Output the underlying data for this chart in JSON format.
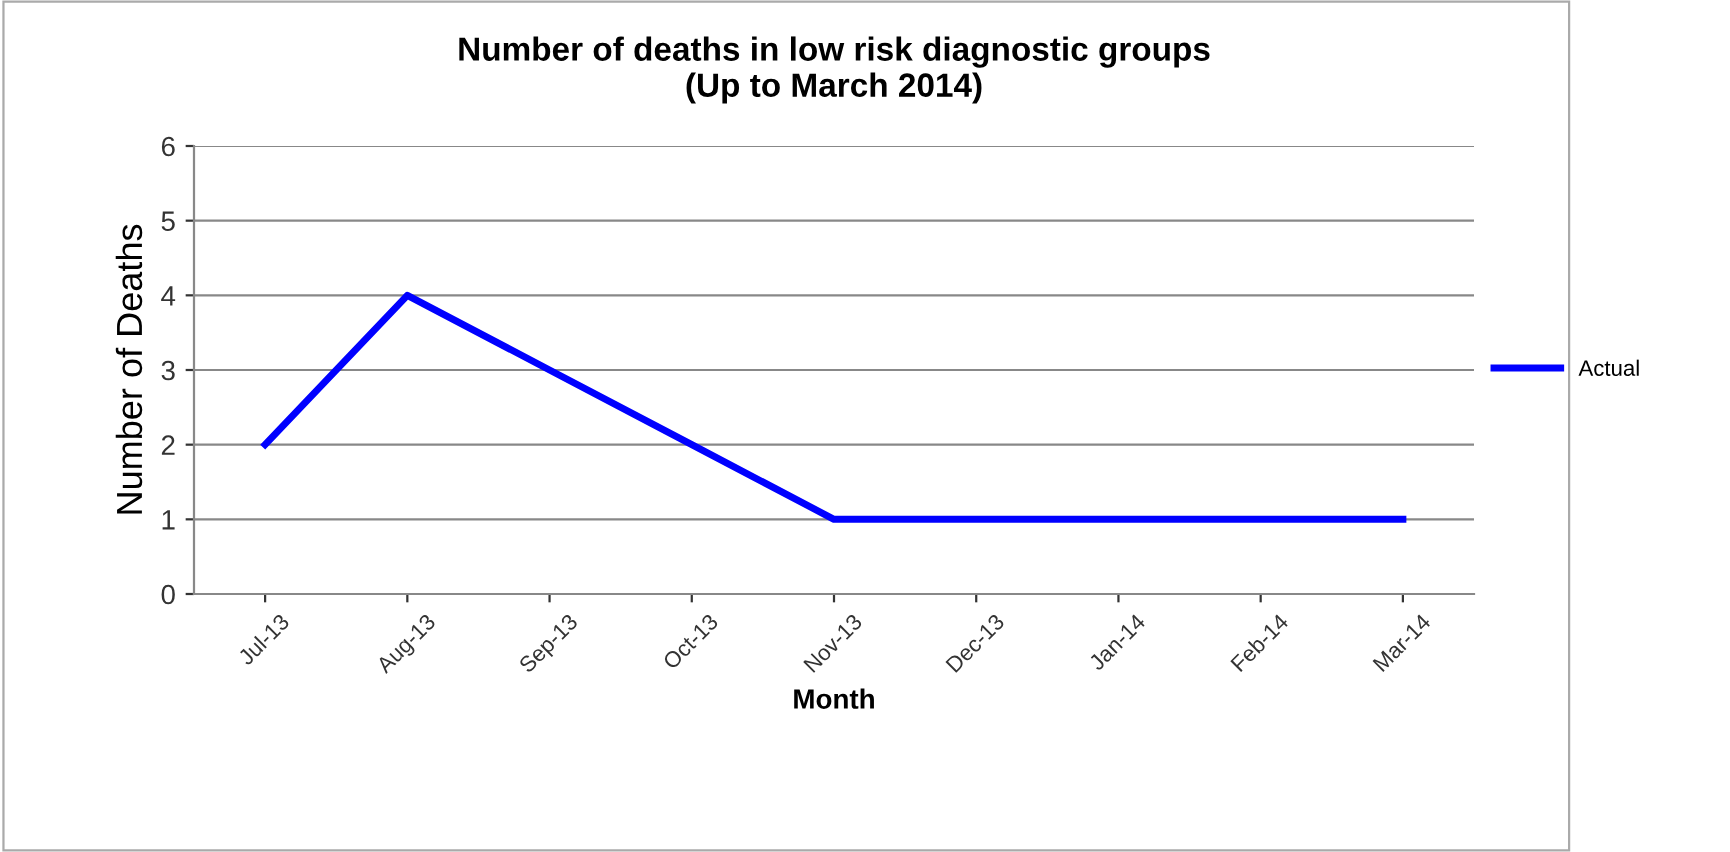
{
  "chart_data": {
    "type": "line",
    "title": "Number of deaths in low risk diagnostic groups\n(Up to March 2014)",
    "xlabel": "Month",
    "ylabel": "Number of Deaths",
    "categories": [
      "Jul-13",
      "Aug-13",
      "Sep-13",
      "Oct-13",
      "Nov-13",
      "Dec-13",
      "Jan-14",
      "Feb-14",
      "Mar-14"
    ],
    "series": [
      {
        "name": "Actual",
        "color": "#0000ff",
        "values": [
          2,
          4,
          3,
          2,
          1,
          1,
          1,
          1,
          1
        ]
      }
    ],
    "ylim": [
      0,
      6
    ],
    "yticks": [
      0,
      1,
      2,
      3,
      4,
      5,
      6
    ],
    "grid": "y",
    "legend": "right",
    "marker": "none",
    "line_style": "solid"
  }
}
